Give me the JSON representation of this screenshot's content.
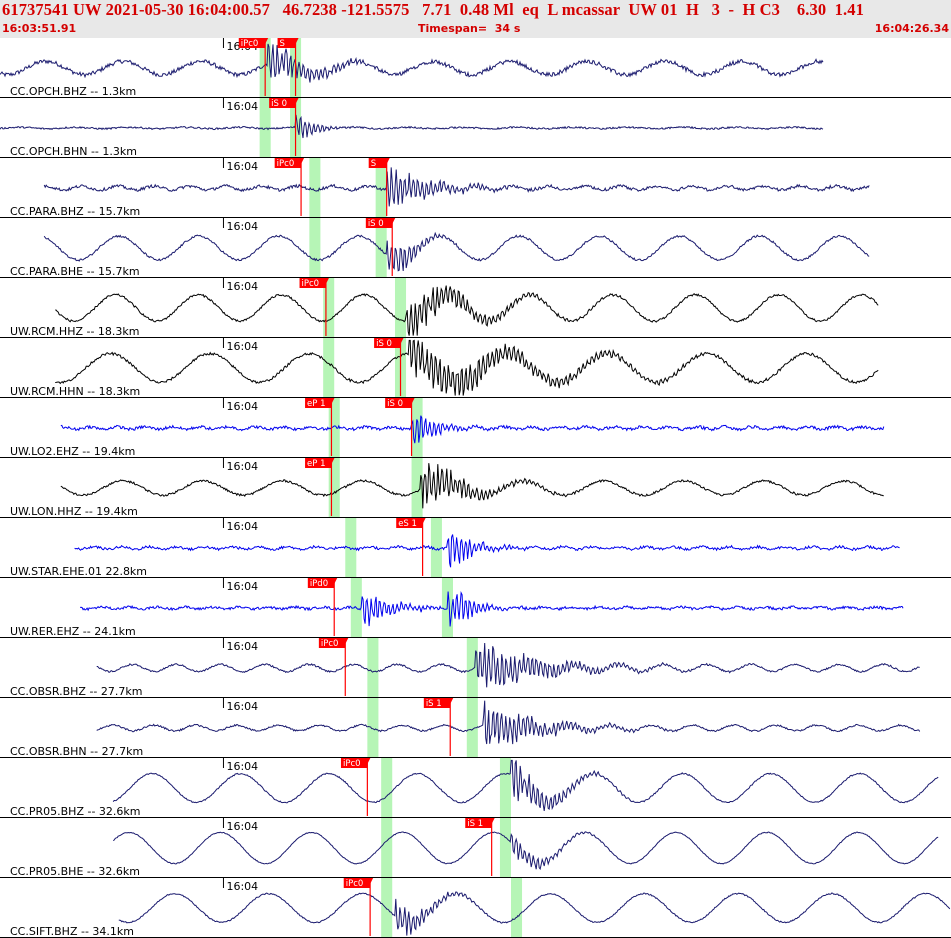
{
  "header": {
    "title": "61737541 UW 2021-05-30 16:04:00.57   46.7238 -121.5575   7.71  0.48 Ml  eq  L mcassar  UW 01  H   3  -  H C3    6.30  1.41",
    "start_time": "16:03:51.91",
    "timespan": "Timespan=  34 s",
    "end_time": "16:04:26.34"
  },
  "colors": {
    "header_bg": "#e8e8e8",
    "header_text": "#d40000",
    "pick_flag": "#ff0000",
    "pick_window": "#b6f5b6",
    "trace_navy": "#1a1a6e",
    "trace_black": "#000000",
    "trace_blue": "#0000ee",
    "separator": "#000000"
  },
  "chart_data": {
    "type": "line",
    "x_axis": "time (s)",
    "xlim_s": [
      0,
      34.43
    ],
    "minute_tick_label": "16:04",
    "minute_tick_time_s": 8.09,
    "series": [
      {
        "name": "CC.OPCH.BHZ -- 1.3km",
        "color": "navy",
        "amp": 0.28,
        "noise": 0.5,
        "wave_period_s": 2.8,
        "trace_span_s": [
          0,
          29.8
        ],
        "picks": [
          {
            "label": "iPc0",
            "t_s": 9.6
          },
          {
            "label": "S",
            "t_s": 10.7
          }
        ],
        "onset": {
          "t_s": 9.7,
          "amp": 1.0,
          "decay_s": 1.2
        },
        "windows_s": [
          [
            9.4,
            9.8
          ],
          [
            10.5,
            10.9
          ]
        ]
      },
      {
        "name": "CC.OPCH.BHN -- 1.3km",
        "color": "navy",
        "amp": 0.03,
        "noise": 0.2,
        "wave_period_s": 2.0,
        "trace_span_s": [
          0,
          29.8
        ],
        "picks": [
          {
            "label": "iS 0",
            "t_s": 10.7
          }
        ],
        "onset": {
          "t_s": 10.7,
          "amp": 0.8,
          "decay_s": 0.5
        },
        "windows_s": [
          [
            9.4,
            9.8
          ],
          [
            10.5,
            10.9
          ]
        ]
      },
      {
        "name": "CC.PARA.BHZ -- 15.7km",
        "color": "navy",
        "amp": 0.08,
        "noise": 0.35,
        "wave_period_s": 1.3,
        "trace_span_s": [
          1.6,
          31.5
        ],
        "picks": [
          {
            "label": "iPc0",
            "t_s": 10.9
          },
          {
            "label": "S",
            "t_s": 14.0
          }
        ],
        "onset": {
          "t_s": 14.0,
          "amp": 0.9,
          "decay_s": 1.5
        },
        "windows_s": [
          [
            11.2,
            11.6
          ],
          [
            13.6,
            14.0
          ]
        ]
      },
      {
        "name": "CC.PARA.BHE -- 15.7km",
        "color": "navy",
        "amp": 0.5,
        "noise": 0.25,
        "wave_period_s": 2.9,
        "trace_span_s": [
          1.6,
          31.5
        ],
        "picks": [
          {
            "label": "iS 0",
            "t_s": 14.2
          }
        ],
        "onset": {
          "t_s": 14.0,
          "amp": 1.0,
          "decay_s": 0.8
        },
        "windows_s": [
          [
            11.2,
            11.6
          ],
          [
            13.6,
            14.0
          ]
        ]
      },
      {
        "name": "UW.RCM.HHZ -- 18.3km",
        "color": "black",
        "amp": 0.55,
        "noise": 0.25,
        "wave_period_s": 3.0,
        "trace_span_s": [
          2.0,
          31.8
        ],
        "picks": [
          {
            "label": "iPc0",
            "t_s": 11.8
          }
        ],
        "onset": {
          "t_s": 14.7,
          "amp": 1.0,
          "decay_s": 1.8
        },
        "windows_s": [
          [
            11.7,
            12.1
          ],
          [
            14.3,
            14.7
          ]
        ]
      },
      {
        "name": "UW.RCM.HHN -- 18.3km",
        "color": "black",
        "amp": 0.6,
        "noise": 0.3,
        "wave_period_s": 3.6,
        "trace_span_s": [
          2.0,
          31.8
        ],
        "picks": [
          {
            "label": "iS 0",
            "t_s": 14.5
          }
        ],
        "onset": {
          "t_s": 14.8,
          "amp": 1.0,
          "decay_s": 3.5
        },
        "windows_s": [
          [
            11.7,
            12.1
          ],
          [
            14.3,
            14.7
          ]
        ]
      },
      {
        "name": "UW.LO2.EHZ -- 19.4km",
        "color": "blue",
        "amp": 0.05,
        "noise": 0.35,
        "wave_period_s": 1.0,
        "trace_span_s": [
          2.2,
          32.0
        ],
        "picks": [
          {
            "label": "eP 1",
            "t_s": 12.0
          },
          {
            "label": "iS 0",
            "t_s": 14.9
          }
        ],
        "onset": {
          "t_s": 14.9,
          "amp": 1.0,
          "decay_s": 0.7
        },
        "windows_s": [
          [
            11.9,
            12.3
          ],
          [
            14.9,
            15.3
          ]
        ]
      },
      {
        "name": "UW.LON.HHZ -- 19.4km",
        "color": "black",
        "amp": 0.3,
        "noise": 0.25,
        "wave_period_s": 2.9,
        "trace_span_s": [
          2.2,
          32.0
        ],
        "picks": [
          {
            "label": "eP 1",
            "t_s": 12.0
          }
        ],
        "onset": {
          "t_s": 15.2,
          "amp": 1.0,
          "decay_s": 1.5
        },
        "windows_s": [
          [
            11.9,
            12.3
          ],
          [
            14.9,
            15.3
          ]
        ]
      },
      {
        "name": "UW.STAR.EHE.01 22.8km",
        "color": "blue",
        "amp": 0.05,
        "noise": 0.3,
        "wave_period_s": 1.0,
        "trace_span_s": [
          2.7,
          32.6
        ],
        "picks": [
          {
            "label": "eS 1",
            "t_s": 15.3
          }
        ],
        "onset": {
          "t_s": 16.2,
          "amp": 1.0,
          "decay_s": 0.8
        },
        "windows_s": [
          [
            12.5,
            12.9
          ],
          [
            15.6,
            16.0
          ]
        ]
      },
      {
        "name": "UW.RER.EHZ -- 24.1km",
        "color": "blue",
        "amp": 0.04,
        "noise": 0.3,
        "wave_period_s": 1.0,
        "trace_span_s": [
          2.9,
          32.7
        ],
        "picks": [
          {
            "label": "iPd0",
            "t_s": 12.1
          }
        ],
        "onset": {
          "t_s": 13.1,
          "amp": 0.9,
          "decay_s": 0.9
        },
        "secondary_onset": {
          "t_s": 16.2,
          "amp": 1.0,
          "decay_s": 0.8
        },
        "windows_s": [
          [
            12.7,
            13.1
          ],
          [
            16.0,
            16.4
          ]
        ]
      },
      {
        "name": "CC.OBSR.BHZ -- 27.7km",
        "color": "navy",
        "amp": 0.15,
        "noise": 0.2,
        "wave_period_s": 1.6,
        "trace_span_s": [
          3.5,
          33.3
        ],
        "picks": [
          {
            "label": "iPc0",
            "t_s": 12.5
          }
        ],
        "onset": {
          "t_s": 17.2,
          "amp": 1.0,
          "decay_s": 2.2
        },
        "windows_s": [
          [
            13.3,
            13.7
          ],
          [
            16.9,
            17.3
          ]
        ]
      },
      {
        "name": "CC.OBSR.BHN -- 27.7km",
        "color": "navy",
        "amp": 0.12,
        "noise": 0.2,
        "wave_period_s": 1.5,
        "trace_span_s": [
          3.5,
          33.3
        ],
        "picks": [
          {
            "label": "iS 1",
            "t_s": 16.3
          }
        ],
        "onset": {
          "t_s": 17.5,
          "amp": 1.0,
          "decay_s": 1.8
        },
        "windows_s": [
          [
            13.3,
            13.7
          ],
          [
            16.9,
            17.3
          ]
        ]
      },
      {
        "name": "CC.PR05.BHZ -- 32.6km",
        "color": "navy",
        "amp": 0.6,
        "noise": 0.15,
        "wave_period_s": 3.2,
        "trace_span_s": [
          4.1,
          34.0
        ],
        "picks": [
          {
            "label": "iPc0",
            "t_s": 13.3
          }
        ],
        "onset": {
          "t_s": 18.5,
          "amp": 1.0,
          "decay_s": 1.2
        },
        "windows_s": [
          [
            13.8,
            14.2
          ],
          [
            18.1,
            18.5
          ]
        ]
      },
      {
        "name": "CC.PR05.BHE -- 32.6km",
        "color": "navy",
        "amp": 0.65,
        "noise": 0.1,
        "wave_period_s": 3.3,
        "trace_span_s": [
          4.1,
          34.0
        ],
        "picks": [
          {
            "label": "iS 1",
            "t_s": 17.8
          }
        ],
        "onset": {
          "t_s": 18.5,
          "amp": 0.6,
          "decay_s": 1.0
        },
        "windows_s": [
          [
            13.8,
            14.2
          ],
          [
            18.1,
            18.5
          ]
        ]
      },
      {
        "name": "CC.SIFT.BHZ -- 34.1km",
        "color": "navy",
        "amp": 0.6,
        "noise": 0.15,
        "wave_period_s": 3.4,
        "trace_span_s": [
          4.3,
          34.4
        ],
        "picks": [
          {
            "label": "iPc0",
            "t_s": 13.4
          }
        ],
        "onset": {
          "t_s": 14.3,
          "amp": 0.8,
          "decay_s": 1.0
        },
        "windows_s": [
          [
            13.8,
            14.2
          ],
          [
            18.5,
            18.9
          ]
        ]
      }
    ]
  }
}
